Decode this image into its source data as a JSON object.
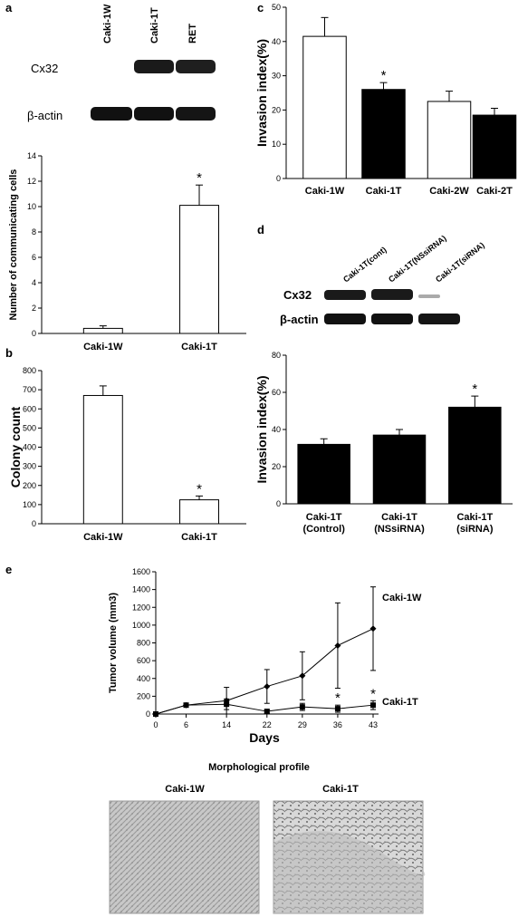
{
  "panels": {
    "a": "a",
    "b": "b",
    "c": "c",
    "d": "d",
    "e": "e"
  },
  "blot_a": {
    "lanes": [
      "Caki-1W",
      "Caki-1T",
      "RET"
    ],
    "rows": [
      "Cx32",
      "β-actin"
    ]
  },
  "blot_d": {
    "lanes": [
      "Caki-1T(cont)",
      "Caki-1T(NSsiRNA)",
      "Caki-1T(siRNA)"
    ],
    "rows": [
      "Cx32",
      "β-actin"
    ]
  },
  "morphology": {
    "title": "Morphological profile",
    "labels": [
      "Caki-1W",
      "Caki-1T"
    ]
  },
  "chart_data": [
    {
      "id": "a",
      "type": "bar",
      "categories": [
        "Caki-1W",
        "Caki-1T"
      ],
      "values": [
        0.4,
        10.1
      ],
      "errors": [
        0.2,
        1.6
      ],
      "fills": [
        "#ffffff",
        "#ffffff"
      ],
      "ylabel": "Number of communicating cells",
      "ylim": [
        0,
        14
      ],
      "yticks": [
        0,
        2,
        4,
        6,
        8,
        10,
        12,
        14
      ],
      "annotations": [
        "",
        "*"
      ]
    },
    {
      "id": "b",
      "type": "bar",
      "categories": [
        "Caki-1W",
        "Caki-1T"
      ],
      "values": [
        670,
        125
      ],
      "errors": [
        50,
        20
      ],
      "fills": [
        "#ffffff",
        "#ffffff"
      ],
      "ylabel": "Colony count",
      "ylim": [
        0,
        800
      ],
      "yticks": [
        0,
        100,
        200,
        300,
        400,
        500,
        600,
        700,
        800
      ],
      "annotations": [
        "",
        "*"
      ]
    },
    {
      "id": "c",
      "type": "bar",
      "categories": [
        "Caki-1W",
        "Caki-1T",
        "Caki-2W",
        "Caki-2T"
      ],
      "values": [
        41.5,
        26,
        22.5,
        18.5
      ],
      "errors": [
        5.5,
        2,
        3,
        2
      ],
      "fills": [
        "#ffffff",
        "#000000",
        "#ffffff",
        "#000000"
      ],
      "ylabel": "Invasion index(%)",
      "ylim": [
        0,
        50
      ],
      "yticks": [
        0,
        10,
        20,
        30,
        40,
        50
      ],
      "annotations": [
        "",
        "*",
        "",
        ""
      ]
    },
    {
      "id": "d",
      "type": "bar",
      "categories": [
        "Caki-1T\n(Control)",
        "Caki-1T\n(NSsiRNA)",
        "Caki-1T\n(siRNA)"
      ],
      "values": [
        32,
        37,
        52
      ],
      "errors": [
        3,
        3,
        6
      ],
      "fills": [
        "#000000",
        "#000000",
        "#000000"
      ],
      "ylabel": "Invasion index(%)",
      "ylim": [
        0,
        80
      ],
      "yticks": [
        0,
        20,
        40,
        60,
        80
      ],
      "annotations": [
        "",
        "",
        "*"
      ]
    },
    {
      "id": "e",
      "type": "line",
      "x": [
        0,
        6,
        14,
        22,
        29,
        36,
        43
      ],
      "xlabel": "Days",
      "ylabel": "Tumor volume (mm3)",
      "ylim": [
        0,
        1600
      ],
      "yticks": [
        0,
        200,
        400,
        600,
        800,
        1000,
        1200,
        1400,
        1600
      ],
      "series": [
        {
          "name": "Caki-1W",
          "marker": "diamond",
          "values": [
            0,
            100,
            150,
            310,
            430,
            770,
            960
          ],
          "errors": [
            0,
            20,
            150,
            190,
            270,
            480,
            470
          ]
        },
        {
          "name": "Caki-1T",
          "marker": "square",
          "values": [
            0,
            100,
            110,
            30,
            80,
            60,
            100
          ],
          "errors": [
            0,
            20,
            60,
            20,
            40,
            40,
            50
          ]
        }
      ],
      "annotations": [
        {
          "x": 36,
          "text": "*"
        },
        {
          "x": 43,
          "text": "*"
        }
      ]
    }
  ]
}
